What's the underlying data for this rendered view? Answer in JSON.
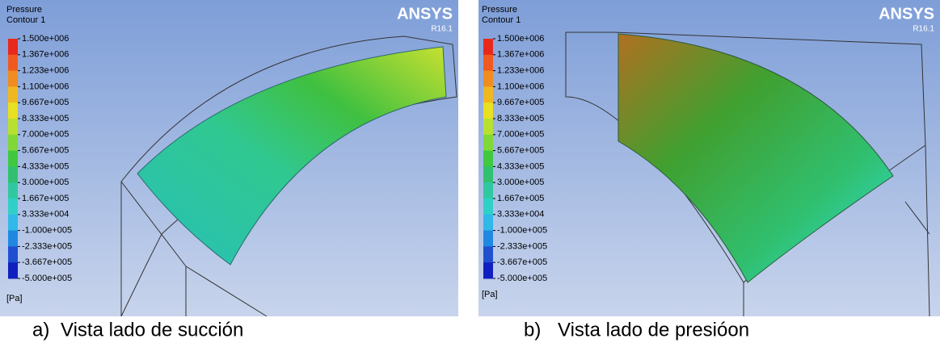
{
  "panels": [
    {
      "title": "Pressure",
      "subtitle": "Contour 1",
      "brand": "ANSYS",
      "version": "R16.1",
      "unit": "[Pa]",
      "legend": [
        "1.500e+006",
        "1.367e+006",
        "1.233e+006",
        "1.100e+006",
        "9.667e+005",
        "8.333e+005",
        "7.000e+005",
        "5.667e+005",
        "4.333e+005",
        "3.000e+005",
        "1.667e+005",
        "3.333e+004",
        "-1.000e+005",
        "-2.333e+005",
        "-3.667e+005",
        "-5.000e+005"
      ],
      "caption_letter": "a)",
      "caption": "Vista lado de succión"
    },
    {
      "title": "Pressure",
      "subtitle": "Contour 1",
      "brand": "ANSYS",
      "version": "R16.1",
      "unit": "[Pa]",
      "legend": [
        "1.500e+006",
        "1.367e+006",
        "1.233e+006",
        "1.100e+006",
        "9.667e+005",
        "8.333e+005",
        "7.000e+005",
        "5.667e+005",
        "4.333e+005",
        "3.000e+005",
        "1.667e+005",
        "3.333e+004",
        "-1.000e+005",
        "-2.333e+005",
        "-3.667e+005",
        "-5.000e+005"
      ],
      "caption_letter": "b)",
      "caption": "Vista lado de presióon"
    }
  ]
}
